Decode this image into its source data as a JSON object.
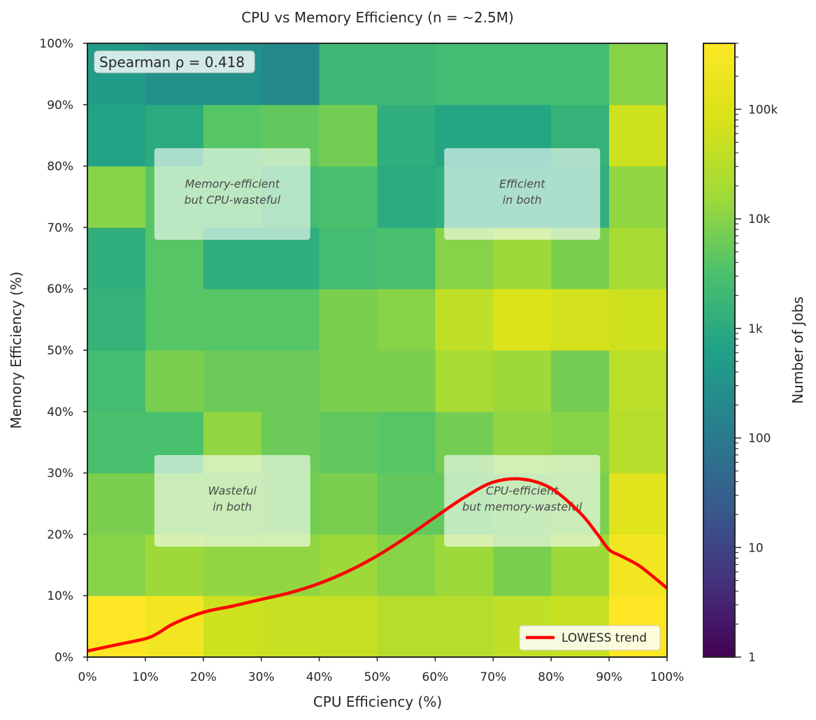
{
  "chart_data": {
    "type": "heatmap",
    "title": "CPU vs Memory Efficiency (n = ~2.5M)",
    "xlabel": "CPU Efficiency (%)",
    "ylabel": "Memory Efficiency (%)",
    "xlim": [
      0,
      100
    ],
    "ylim": [
      0,
      100
    ],
    "x_ticks": [
      "0%",
      "10%",
      "20%",
      "30%",
      "40%",
      "50%",
      "60%",
      "70%",
      "80%",
      "90%",
      "100%"
    ],
    "y_ticks": [
      "0%",
      "10%",
      "20%",
      "30%",
      "40%",
      "50%",
      "60%",
      "70%",
      "80%",
      "90%",
      "100%"
    ],
    "bin_size": 10,
    "x_bins": [
      "0-10%",
      "10-20%",
      "20-30%",
      "30-40%",
      "40-50%",
      "50-60%",
      "60-70%",
      "70-80%",
      "80-90%",
      "90-100%"
    ],
    "y_bins": [
      "0-10%",
      "10-20%",
      "20-30%",
      "30-40%",
      "40-50%",
      "50-60%",
      "60-70%",
      "70-80%",
      "80-90%",
      "90-100%"
    ],
    "counts": [
      [
        400000,
        250000,
        60000,
        50000,
        45000,
        30000,
        30000,
        40000,
        50000,
        400000
      ],
      [
        10000,
        15000,
        12000,
        12000,
        15000,
        10000,
        15000,
        8000,
        15000,
        250000
      ],
      [
        8000,
        8000,
        8000,
        7000,
        8000,
        5000,
        5000,
        7000,
        8000,
        120000
      ],
      [
        3000,
        3000,
        12000,
        6000,
        5000,
        4000,
        7000,
        12000,
        10000,
        30000
      ],
      [
        2500,
        8000,
        6000,
        6000,
        8000,
        8000,
        20000,
        15000,
        7000,
        35000
      ],
      [
        1500,
        4000,
        4000,
        4000,
        8000,
        10000,
        40000,
        100000,
        70000,
        60000
      ],
      [
        1200,
        4000,
        1200,
        1200,
        2500,
        3000,
        10000,
        15000,
        8000,
        20000
      ],
      [
        10000,
        4000,
        4000,
        2500,
        3000,
        1000,
        1200,
        1200,
        1200,
        12000
      ],
      [
        700,
        1000,
        4000,
        5000,
        7000,
        1200,
        800,
        800,
        1500,
        60000
      ],
      [
        500,
        300,
        300,
        200,
        2000,
        2000,
        2500,
        2500,
        2500,
        10000
      ]
    ],
    "colorbar": {
      "label": "Number of Jobs",
      "scale": "log",
      "range": [
        1,
        400000
      ],
      "ticks": [
        1,
        10,
        100,
        1000,
        10000,
        100000
      ],
      "tick_labels": [
        "1",
        "10",
        "100",
        "1k",
        "10k",
        "100k"
      ]
    },
    "colormap": "viridis",
    "annotation": "Spearman ρ = 0.418",
    "quadrant_labels": [
      {
        "line1": "Memory-efficient",
        "line2": "but CPU-wasteful",
        "cx": 25,
        "cy": 75
      },
      {
        "line1": "Efficient",
        "line2": "in both",
        "cx": 75,
        "cy": 75
      },
      {
        "line1": "Wasteful",
        "line2": "in both",
        "cx": 25,
        "cy": 25
      },
      {
        "line1": "CPU-efficient",
        "line2": "but memory-wasteful",
        "cx": 75,
        "cy": 25
      }
    ],
    "lowess": {
      "name": "LOWESS trend",
      "color": "#ff0000",
      "x": [
        0,
        5,
        10,
        12,
        15,
        20,
        25,
        30,
        35,
        40,
        45,
        50,
        55,
        60,
        65,
        70,
        75,
        80,
        85,
        88,
        90,
        92,
        95,
        98,
        100
      ],
      "y": [
        1.0,
        2.0,
        3.0,
        3.8,
        5.5,
        7.3,
        8.3,
        9.4,
        10.5,
        12.0,
        14.0,
        16.5,
        19.5,
        22.8,
        26.0,
        28.5,
        29.0,
        27.5,
        23.5,
        20.0,
        17.5,
        16.5,
        15.0,
        12.8,
        11.2
      ]
    },
    "legend": {
      "position": "lower-right",
      "entries": [
        "LOWESS trend"
      ]
    },
    "grid": false
  }
}
